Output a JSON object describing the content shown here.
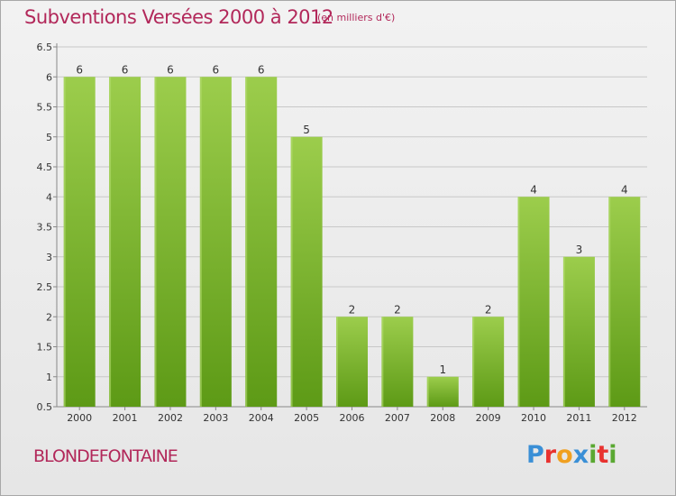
{
  "header": {
    "title": "Subventions Versées 2000 à 2012",
    "unit_note": "(en milliers d'€)"
  },
  "footer": {
    "town": "BLONDEFONTAINE",
    "logo_letters": [
      "P",
      "r",
      "o",
      "x",
      "i",
      "t",
      "i"
    ],
    "logo_colors": [
      "#3a8fd6",
      "#e8322f",
      "#f0a020",
      "#3a8fd6",
      "#5aa832",
      "#e8322f",
      "#5aa832"
    ]
  },
  "colors": {
    "title": "#b2285a",
    "bar_top": "#9ccd4c",
    "bar_bottom": "#5d9a16",
    "grid": "#c8c8c8"
  },
  "chart_data": {
    "type": "bar",
    "title": "Subventions Versées 2000 à 2012",
    "subtitle": "(en milliers d'€)",
    "categories": [
      "2000",
      "2001",
      "2002",
      "2003",
      "2004",
      "2005",
      "2006",
      "2007",
      "2008",
      "2009",
      "2010",
      "2011",
      "2012"
    ],
    "values": [
      6,
      6,
      6,
      6,
      6,
      5,
      2,
      2,
      1,
      2,
      4,
      3,
      4
    ],
    "data_labels": [
      "6",
      "6",
      "6",
      "6",
      "6",
      "5",
      "2",
      "2",
      "1",
      "2",
      "4",
      "3",
      "4"
    ],
    "y_ticks": [
      "0.5",
      "1",
      "1.5",
      "2",
      "2.5",
      "3",
      "3.5",
      "4",
      "4.5",
      "5",
      "5.5",
      "6",
      "6.5"
    ],
    "ylim": [
      0.5,
      6.5
    ],
    "grid": true,
    "xlabel": "",
    "ylabel": ""
  }
}
